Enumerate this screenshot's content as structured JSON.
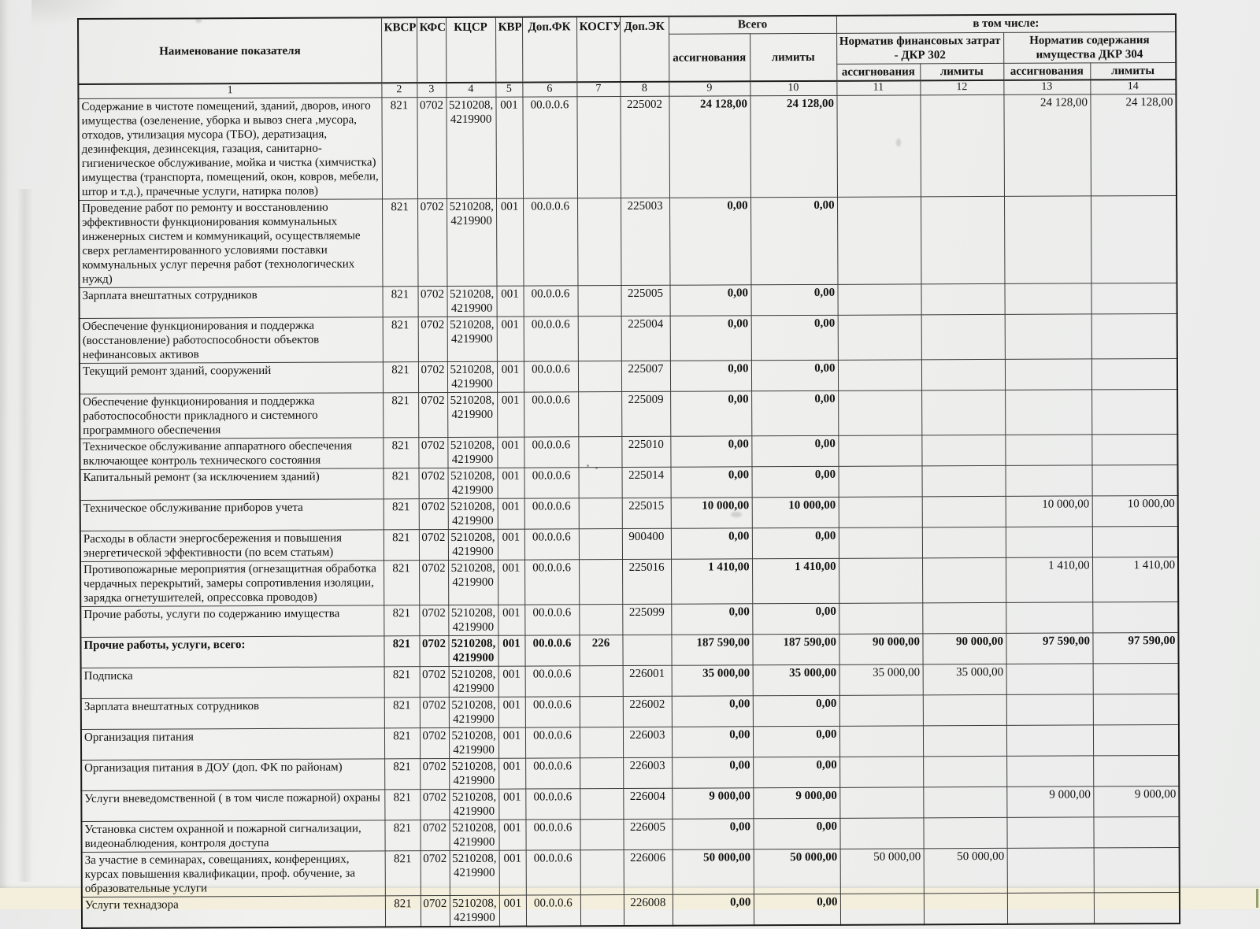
{
  "document": {
    "header": {
      "name_col": "Наименование показателя",
      "kvsr": "КВСР",
      "kfsr": "КФСР",
      "kcsr": "КЦСР",
      "kvr": "КВР",
      "dopfk": "Доп.ФК",
      "kosgu": "КОСГУ",
      "dopek": "Доп.ЭК",
      "vsego": "Всего",
      "v_tom_chisle": "в том числе:",
      "assig": "ассигнования",
      "limity": "лимиты",
      "dkr302": "Норматив финансовых затрат - ДКР 302",
      "dkr304": "Норматив содержания имущества ДКР 304",
      "sub": [
        "ассигнования",
        "лимиты",
        "ассигнования",
        "лимиты"
      ]
    },
    "column_numbers": [
      "1",
      "2",
      "3",
      "4",
      "5",
      "6",
      "7",
      "8",
      "9",
      "10",
      "11",
      "12",
      "13",
      "14"
    ],
    "rows": [
      {
        "name": "Содержание в чистоте помещений, зданий, дворов, иного имущества (озеленение, уборка и вывоз снега ,мусора, отходов, утилизация мусора (ТБО), дератизация, дезинфекция, дезинсекция, газация, санитарно-гигиеническое обслуживание, мойка и чистка (химчистка) имущества (транспорта, помещений, окон, ковров, мебели, штор и т.д.), прачечные услуги, натирка полов)",
        "kvsr": "821",
        "kfsr": "0702",
        "kcsr": "5210208,\n4219900",
        "kvr": "001",
        "dopfk": "00.0.0.6",
        "kosgu": "",
        "dopek": "225002",
        "assig": "24 128,00",
        "limit": "24 128,00",
        "a302": "",
        "l302": "",
        "a304": "24 128,00",
        "l304": "24 128,00",
        "bold": false
      },
      {
        "name": "Проведение работ по ремонту и восстановлению эффективности функционирования коммунальных инженерных систем и коммуникаций, осуществляемые сверх регламентированного условиями поставки коммунальных услуг перечня работ (технологических нужд)",
        "kvsr": "821",
        "kfsr": "0702",
        "kcsr": "5210208,\n4219900",
        "kvr": "001",
        "dopfk": "00.0.0.6",
        "kosgu": "",
        "dopek": "225003",
        "assig": "0,00",
        "limit": "0,00",
        "a302": "",
        "l302": "",
        "a304": "",
        "l304": "",
        "bold": false
      },
      {
        "name": "Зарплата внештатных сотрудников",
        "kvsr": "821",
        "kfsr": "0702",
        "kcsr": "5210208,\n4219900",
        "kvr": "001",
        "dopfk": "00.0.0.6",
        "kosgu": "",
        "dopek": "225005",
        "assig": "0,00",
        "limit": "0,00",
        "a302": "",
        "l302": "",
        "a304": "",
        "l304": "",
        "bold": false
      },
      {
        "name": "Обеспечение функционирования и поддержка (восстановление) работоспособности объектов нефинансовых активов",
        "kvsr": "821",
        "kfsr": "0702",
        "kcsr": "5210208,\n4219900",
        "kvr": "001",
        "dopfk": "00.0.0.6",
        "kosgu": "",
        "dopek": "225004",
        "assig": "0,00",
        "limit": "0,00",
        "a302": "",
        "l302": "",
        "a304": "",
        "l304": "",
        "bold": false
      },
      {
        "name": "Текущий ремонт зданий, сооружений",
        "kvsr": "821",
        "kfsr": "0702",
        "kcsr": "5210208,\n4219900",
        "kvr": "001",
        "dopfk": "00.0.0.6",
        "kosgu": "",
        "dopek": "225007",
        "assig": "0,00",
        "limit": "0,00",
        "a302": "",
        "l302": "",
        "a304": "",
        "l304": "",
        "bold": false
      },
      {
        "name": "Обеспечение функционирования и поддержка работоспособности прикладного и системного программного обеспечения",
        "kvsr": "821",
        "kfsr": "0702",
        "kcsr": "5210208,\n4219900",
        "kvr": "001",
        "dopfk": "00.0.0.6",
        "kosgu": "",
        "dopek": "225009",
        "assig": "0,00",
        "limit": "0,00",
        "a302": "",
        "l302": "",
        "a304": "",
        "l304": "",
        "bold": false
      },
      {
        "name": "Техническое обслуживание аппаратного обеспечения включающее контроль технического состояния",
        "kvsr": "821",
        "kfsr": "0702",
        "kcsr": "5210208,\n4219900",
        "kvr": "001",
        "dopfk": "00.0.0.6",
        "kosgu": "",
        "dopek": "225010",
        "assig": "0,00",
        "limit": "0,00",
        "a302": "",
        "l302": "",
        "a304": "",
        "l304": "",
        "bold": false
      },
      {
        "name": "Капитальный ремонт (за исключением зданий)",
        "kvsr": "821",
        "kfsr": "0702",
        "kcsr": "5210208,\n4219900",
        "kvr": "001",
        "dopfk": "00.0.0.6",
        "kosgu": "",
        "dopek": "225014",
        "assig": "0,00",
        "limit": "0,00",
        "a302": "",
        "l302": "",
        "a304": "",
        "l304": "",
        "bold": false
      },
      {
        "name": "Техническое обслуживание приборов учета",
        "kvsr": "821",
        "kfsr": "0702",
        "kcsr": "5210208,\n4219900",
        "kvr": "001",
        "dopfk": "00.0.0.6",
        "kosgu": "",
        "dopek": "225015",
        "assig": "10 000,00",
        "limit": "10 000,00",
        "a302": "",
        "l302": "",
        "a304": "10 000,00",
        "l304": "10 000,00",
        "bold": false
      },
      {
        "name": "Расходы в области энергосбережения и повышения энергетической эффективности (по всем статьям)",
        "kvsr": "821",
        "kfsr": "0702",
        "kcsr": "5210208,\n4219900",
        "kvr": "001",
        "dopfk": "00.0.0.6",
        "kosgu": "",
        "dopek": "900400",
        "assig": "0,00",
        "limit": "0,00",
        "a302": "",
        "l302": "",
        "a304": "",
        "l304": "",
        "bold": false
      },
      {
        "name": "Противопожарные мероприятия (огнезащитная обработка чердачных перекрытий, замеры сопротивления изоляции, зарядка огнетушителей, опрессовка проводов)",
        "kvsr": "821",
        "kfsr": "0702",
        "kcsr": "5210208,\n4219900",
        "kvr": "001",
        "dopfk": "00.0.0.6",
        "kosgu": "",
        "dopek": "225016",
        "assig": "1 410,00",
        "limit": "1 410,00",
        "a302": "",
        "l302": "",
        "a304": "1 410,00",
        "l304": "1 410,00",
        "bold": false
      },
      {
        "name": "Прочие работы, услуги по содержанию имущества",
        "kvsr": "821",
        "kfsr": "0702",
        "kcsr": "5210208,\n4219900",
        "kvr": "001",
        "dopfk": "00.0.0.6",
        "kosgu": "",
        "dopek": "225099",
        "assig": "0,00",
        "limit": "0,00",
        "a302": "",
        "l302": "",
        "a304": "",
        "l304": "",
        "bold": false
      },
      {
        "name": "Прочие работы, услуги, всего:",
        "kvsr": "821",
        "kfsr": "0702",
        "kcsr": "5210208,\n4219900",
        "kvr": "001",
        "dopfk": "00.0.0.6",
        "kosgu": "226",
        "dopek": "",
        "assig": "187 590,00",
        "limit": "187 590,00",
        "a302": "90 000,00",
        "l302": "90 000,00",
        "a304": "97 590,00",
        "l304": "97 590,00",
        "bold": true
      },
      {
        "name": "Подписка",
        "kvsr": "821",
        "kfsr": "0702",
        "kcsr": "5210208,\n4219900",
        "kvr": "001",
        "dopfk": "00.0.0.6",
        "kosgu": "",
        "dopek": "226001",
        "assig": "35 000,00",
        "limit": "35 000,00",
        "a302": "35 000,00",
        "l302": "35 000,00",
        "a304": "",
        "l304": "",
        "bold": false
      },
      {
        "name": "Зарплата внештатных сотрудников",
        "kvsr": "821",
        "kfsr": "0702",
        "kcsr": "5210208,\n4219900",
        "kvr": "001",
        "dopfk": "00.0.0.6",
        "kosgu": "",
        "dopek": "226002",
        "assig": "0,00",
        "limit": "0,00",
        "a302": "",
        "l302": "",
        "a304": "",
        "l304": "",
        "bold": false
      },
      {
        "name": "Организация питания",
        "kvsr": "821",
        "kfsr": "0702",
        "kcsr": "5210208,\n4219900",
        "kvr": "001",
        "dopfk": "00.0.0.6",
        "kosgu": "",
        "dopek": "226003",
        "assig": "0,00",
        "limit": "0,00",
        "a302": "",
        "l302": "",
        "a304": "",
        "l304": "",
        "bold": false
      },
      {
        "name": "Организация питания в ДОУ (доп. ФК по районам)",
        "kvsr": "821",
        "kfsr": "0702",
        "kcsr": "5210208,\n4219900",
        "kvr": "001",
        "dopfk": "00.0.0.6",
        "kosgu": "",
        "dopek": "226003",
        "assig": "0,00",
        "limit": "0,00",
        "a302": "",
        "l302": "",
        "a304": "",
        "l304": "",
        "bold": false
      },
      {
        "name": "Услуги вневедомственной ( в том числе пожарной) охраны",
        "kvsr": "821",
        "kfsr": "0702",
        "kcsr": "5210208,\n4219900",
        "kvr": "001",
        "dopfk": "00.0.0.6",
        "kosgu": "",
        "dopek": "226004",
        "assig": "9 000,00",
        "limit": "9 000,00",
        "a302": "",
        "l302": "",
        "a304": "9 000,00",
        "l304": "9 000,00",
        "bold": false
      },
      {
        "name": "Установка систем охранной и пожарной сигнализации, видеонаблюдения, контроля доступа",
        "kvsr": "821",
        "kfsr": "0702",
        "kcsr": "5210208,\n4219900",
        "kvr": "001",
        "dopfk": "00.0.0.6",
        "kosgu": "",
        "dopek": "226005",
        "assig": "0,00",
        "limit": "0,00",
        "a302": "",
        "l302": "",
        "a304": "",
        "l304": "",
        "bold": false
      },
      {
        "name": "За участие в семинарах, совещаниях, конференциях, курсах повышения квалификации, проф. обучение, за образовательные услуги",
        "kvsr": "821",
        "kfsr": "0702",
        "kcsr": "5210208,\n4219900",
        "kvr": "001",
        "dopfk": "00.0.0.6",
        "kosgu": "",
        "dopek": "226006",
        "assig": "50 000,00",
        "limit": "50 000,00",
        "a302": "50 000,00",
        "l302": "50 000,00",
        "a304": "",
        "l304": "",
        "bold": false
      },
      {
        "name": "Услуги технадзора",
        "kvsr": "821",
        "kfsr": "0702",
        "kcsr": "5210208,\n4219900",
        "kvr": "001",
        "dopfk": "00.0.0.6",
        "kosgu": "",
        "dopek": "226008",
        "assig": "0,00",
        "limit": "0,00",
        "a302": "",
        "l302": "",
        "a304": "",
        "l304": "",
        "bold": false
      }
    ]
  }
}
